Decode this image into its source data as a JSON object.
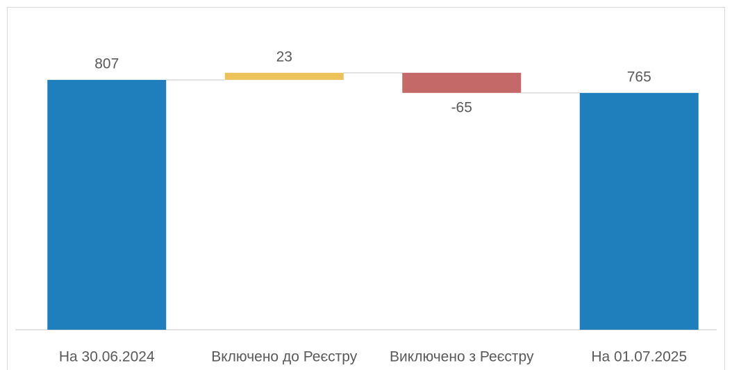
{
  "chart_data": {
    "type": "waterfall",
    "categories": [
      "На 30.06.2024",
      "Включено до Реєстру",
      "Виключено з Реєстру",
      "На 01.07.2025"
    ],
    "values": [
      807,
      23,
      -65,
      765
    ],
    "totals": [
      true,
      false,
      false,
      true
    ],
    "colors": [
      "#1f7fbd",
      "#ecc25a",
      "#c56868",
      "#1f7fbd"
    ],
    "ylim": [
      0,
      1000
    ]
  }
}
